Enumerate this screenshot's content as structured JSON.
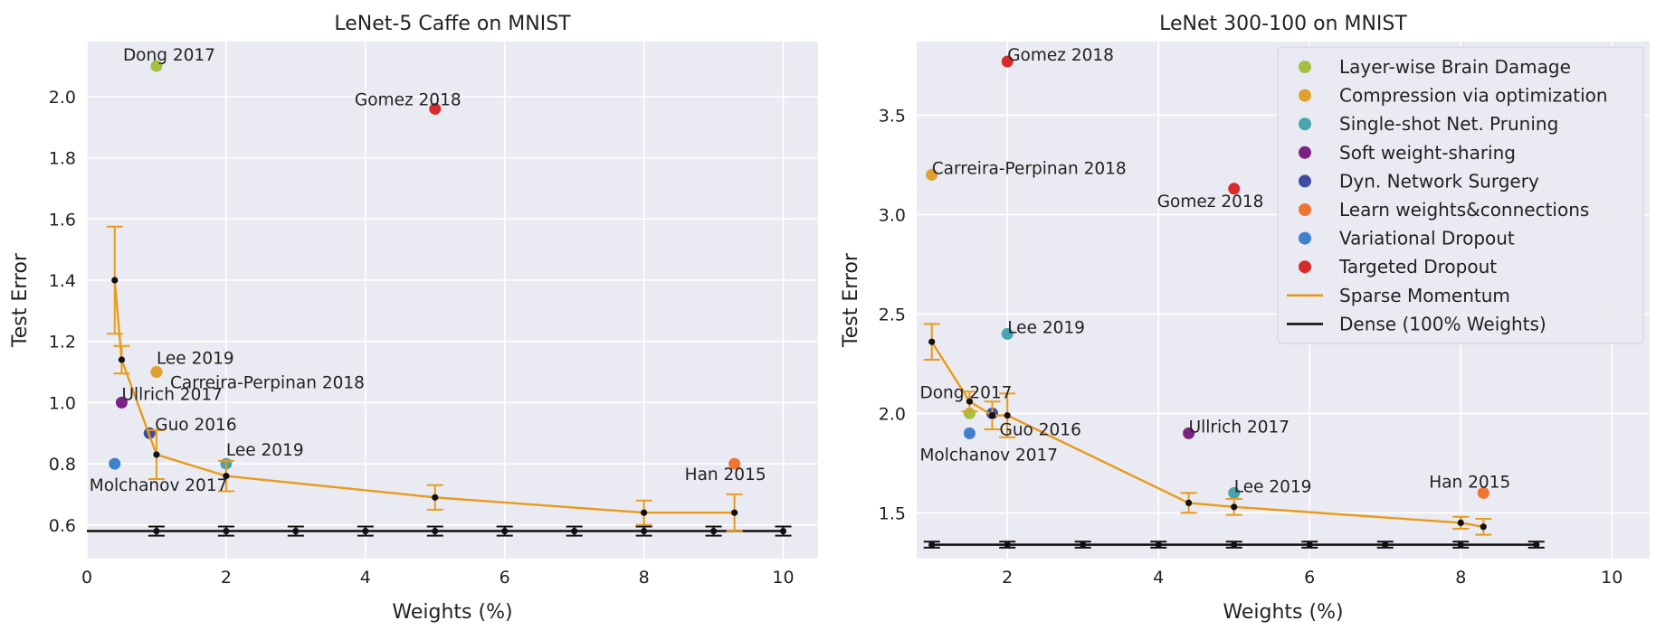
{
  "chart_data": [
    {
      "type": "scatter",
      "title": "LeNet-5 Caffe on MNIST",
      "xlabel": "Weights (%)",
      "ylabel": "Test Error",
      "xlim": [
        0,
        10.5
      ],
      "ylim": [
        0.49,
        2.18
      ],
      "xticks": [
        "0",
        "2",
        "4",
        "6",
        "8",
        "10"
      ],
      "yticks": [
        "0.6",
        "0.8",
        "1.0",
        "1.2",
        "1.4",
        "1.6",
        "1.8",
        "2.0"
      ],
      "grid": true,
      "points": [
        {
          "series": "Layer-wise Brain Damage",
          "x": 1.0,
          "y": 2.1,
          "label": "Dong 2017"
        },
        {
          "series": "Targeted Dropout",
          "x": 5.0,
          "y": 1.96,
          "label": "Gomez 2018"
        },
        {
          "series": "Compression via optimization",
          "x": 1.0,
          "y": 1.1,
          "label": "Lee 2019"
        },
        {
          "series": "Compression via optimization",
          "x": 1.0,
          "y": 1.1,
          "label": "Carreira-Perpinan 2018"
        },
        {
          "series": "Soft weight-sharing",
          "x": 0.5,
          "y": 1.0,
          "label": "Ullrich 2017"
        },
        {
          "series": "Dyn. Network Surgery",
          "x": 0.9,
          "y": 0.9,
          "label": "Guo 2016"
        },
        {
          "series": "Single-shot Net. Pruning",
          "x": 2.0,
          "y": 0.8,
          "label": "Lee 2019"
        },
        {
          "series": "Variational Dropout",
          "x": 0.4,
          "y": 0.8,
          "label": "Molchanov 2017"
        },
        {
          "series": "Learn weights&connections",
          "x": 9.3,
          "y": 0.8,
          "label": "Han 2015"
        }
      ],
      "sparse_momentum": {
        "x": [
          0.4,
          0.5,
          1.0,
          2.0,
          5.0,
          8.0,
          9.3
        ],
        "y": [
          1.4,
          1.14,
          0.83,
          0.76,
          0.69,
          0.64,
          0.64
        ],
        "err": [
          0.175,
          0.045,
          0.08,
          0.05,
          0.04,
          0.04,
          0.06
        ]
      },
      "dense": {
        "x": [
          1,
          2,
          3,
          4,
          5,
          6,
          7,
          8,
          9,
          10
        ],
        "y": 0.58,
        "err": 0.015,
        "line_x": [
          0,
          10
        ]
      }
    },
    {
      "type": "scatter",
      "title": "LeNet 300-100 on MNIST",
      "xlabel": "Weights (%)",
      "ylabel": "Test Error",
      "xlim": [
        0.8,
        10.5
      ],
      "ylim": [
        1.27,
        3.87
      ],
      "xticks": [
        "2",
        "4",
        "6",
        "8",
        "10"
      ],
      "yticks": [
        "1.5",
        "2.0",
        "2.5",
        "3.0",
        "3.5"
      ],
      "grid": true,
      "points": [
        {
          "series": "Targeted Dropout",
          "x": 2.0,
          "y": 3.77,
          "label": "Gomez 2018"
        },
        {
          "series": "Compression via optimization",
          "x": 1.0,
          "y": 3.2,
          "label": "Carreira-Perpinan 2018"
        },
        {
          "series": "Targeted Dropout",
          "x": 5.0,
          "y": 3.13,
          "label": "Gomez 2018"
        },
        {
          "series": "Single-shot Net. Pruning",
          "x": 2.0,
          "y": 2.4,
          "label": "Lee 2019"
        },
        {
          "series": "Layer-wise Brain Damage",
          "x": 1.5,
          "y": 2.0,
          "label": "Dong 2017"
        },
        {
          "series": "Dyn. Network Surgery",
          "x": 1.8,
          "y": 2.0,
          "label": "Guo 2016"
        },
        {
          "series": "Variational Dropout",
          "x": 1.5,
          "y": 1.9,
          "label": "Molchanov 2017"
        },
        {
          "series": "Soft weight-sharing",
          "x": 4.4,
          "y": 1.9,
          "label": "Ullrich 2017"
        },
        {
          "series": "Single-shot Net. Pruning",
          "x": 5.0,
          "y": 1.6,
          "label": "Lee 2019"
        },
        {
          "series": "Learn weights&connections",
          "x": 8.3,
          "y": 1.6,
          "label": "Han 2015"
        }
      ],
      "sparse_momentum": {
        "x": [
          1.0,
          1.5,
          1.8,
          2.0,
          4.4,
          5.0,
          8.0,
          8.3
        ],
        "y": [
          2.36,
          2.06,
          1.99,
          1.99,
          1.55,
          1.53,
          1.45,
          1.43
        ],
        "err": [
          0.09,
          0.05,
          0.07,
          0.11,
          0.05,
          0.04,
          0.03,
          0.04
        ]
      },
      "dense": {
        "x": [
          1,
          2,
          3,
          4,
          5,
          6,
          7,
          8,
          9
        ],
        "y": 1.34,
        "err": 0.015,
        "line_x": [
          1,
          9
        ]
      }
    }
  ],
  "legend": {
    "placement": "top-right of right panel",
    "entries": [
      {
        "label": "Layer-wise Brain Damage",
        "color": "#a3c043",
        "kind": "marker"
      },
      {
        "label": "Compression via optimization",
        "color": "#e0a030",
        "kind": "marker"
      },
      {
        "label": "Single-shot Net. Pruning",
        "color": "#4aa3b0",
        "kind": "marker"
      },
      {
        "label": "Soft weight-sharing",
        "color": "#7b2283",
        "kind": "marker"
      },
      {
        "label": "Dyn. Network Surgery",
        "color": "#3f4ea0",
        "kind": "marker"
      },
      {
        "label": "Learn weights&connections",
        "color": "#ef7530",
        "kind": "marker"
      },
      {
        "label": "Variational Dropout",
        "color": "#4080cc",
        "kind": "marker"
      },
      {
        "label": "Targeted Dropout",
        "color": "#d92b2b",
        "kind": "marker"
      },
      {
        "label": "Sparse Momentum",
        "color": "#e89b1a",
        "kind": "line"
      },
      {
        "label": "Dense (100% Weights)",
        "color": "#111111",
        "kind": "line"
      }
    ]
  },
  "colors": {
    "plot_background": "#eaeaf2",
    "grid": "#ffffff",
    "sparse_momentum": "#e89b1a",
    "dense": "#111111",
    "mean_marker": "#111111"
  }
}
